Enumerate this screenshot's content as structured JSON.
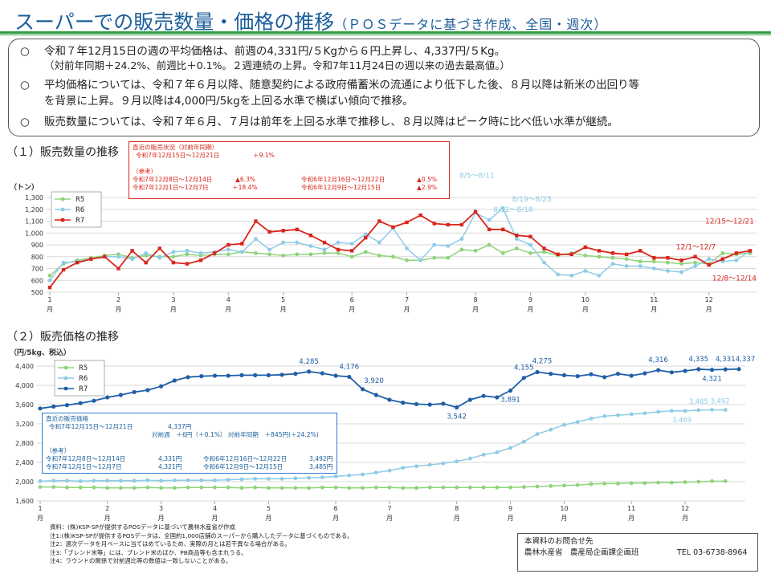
{
  "header": {
    "title": "スーパーでの販売数量・価格の推移",
    "subtitle": "（ＰＯＳデータに基づき作成、全国・週次）"
  },
  "summary": [
    {
      "mark": "○",
      "lines": [
        "令和７年12月15日の週の平均価格は、前週の4,331円/５Kgから６円上昇し、4,337円/５Kg。",
        "（対前年同期＋24.2%、前週比＋0.1%。２週連続の上昇。令和7年11月24日の週以来の過去最高値。）"
      ]
    },
    {
      "mark": "○",
      "lines": [
        "平均価格については、令和７年６月以降、随意契約による政府備蓄米の流通により低下した後、８月以降は新米の出回り等",
        "を背景に上昇。９月以降は4,000円/5kgを上回る水準で横ばい傾向で推移。"
      ]
    },
    {
      "mark": "○",
      "lines": [
        "販売数量については、令和７年６月、７月は前年を上回る水準で推移し、８月以降はピーク時に比べ低い水準が継続。"
      ]
    }
  ],
  "sections": {
    "volume_title": "（１）販売数量の推移",
    "volume_unit": "（トン）",
    "price_title": "（２）販売価格の推移",
    "price_unit": "（円/5kg、税込）"
  },
  "volume_box": {
    "heading": "直近の販売状況（対前年同期）",
    "r7_latest": "令和7年12月15日～12月21日",
    "r7_latest_change": "＋9.1%",
    "ref": "（参考）",
    "rows": [
      {
        "a": "令和7年12月8日～12月14日",
        "av": "▲6.3%",
        "b": "令和6年12月16日～12月22日",
        "bv": "▲0.5%"
      },
      {
        "a": "令和7年12月1日～12月7日",
        "av": "＋18.4%",
        "b": "令和6年12月9日～12月15日",
        "bv": "▲2.9%"
      }
    ]
  },
  "price_box": {
    "heading": "直近の販売価格",
    "r7_latest": "令和7年12月15日～12月21日",
    "r7_latest_value": "4,337円",
    "comparison": "対前週　＋6円（＋0.1%）  対前年同期　＋845円(＋24.2%)",
    "ref": "（参考）",
    "rows": [
      {
        "a": "令和7年12月8日～12月14日",
        "av": "4,331円",
        "b": "令和6年12月16日～12月22日",
        "bv": "3,492円"
      },
      {
        "a": "令和7年12月1日～12月7日",
        "av": "4,321円",
        "b": "令和6年12月9日～12月15日",
        "bv": "3,485円"
      }
    ]
  },
  "notes": [
    "資料：(株)KSP-SPが提供するPOSデータに基づいて農林水産省が作成",
    "注1:(株)KSP-SPが提供するPOSデータは、全国約1,000店舗のスーパーから購入したデータに基づくものである。",
    "注2：週次データを月ベースに当てはめているため、実際の月とは若干異なる場合がある。",
    "注3:「ブレンド米等」には、ブレンド米のほか、PB商品等も含まれうる。",
    "注4：ラウンドの関係で対前週比等の数値は一致しないことがある。"
  ],
  "contact": {
    "heading": "本資料のお問合せ先",
    "dept": "農林水産省　農産局企画課企画班",
    "tel": "TEL 03-6738-8964"
  },
  "colors": {
    "title": "#1a5e9a",
    "rule": "#2e9e3e",
    "r5": "#8fd37a",
    "r6": "#8ecbe6",
    "r7_volume": "#d9261c",
    "r7_price": "#1f5fa8",
    "grid": "#d9d9d9"
  },
  "chart_data": [
    {
      "type": "line",
      "title": "（１）販売数量の推移",
      "ylabel": "（トン）",
      "ylim": [
        500,
        1300
      ],
      "yticks": [
        "500",
        "600",
        "700",
        "800",
        "900",
        "1,000",
        "1,100",
        "1,200",
        "1,300"
      ],
      "month_labels": [
        "1",
        "2",
        "3",
        "4",
        "5",
        "6",
        "7",
        "8",
        "9",
        "10",
        "11",
        "12"
      ],
      "month_suffix": "月",
      "x_unit": "week",
      "month_starts": [
        0,
        5,
        9,
        13,
        17,
        22,
        26,
        31,
        35,
        39,
        44,
        48
      ],
      "legend": [
        "R5",
        "R6",
        "R7"
      ],
      "series": [
        {
          "name": "R5",
          "values": [
            640,
            740,
            770,
            790,
            810,
            820,
            790,
            810,
            800,
            800,
            820,
            810,
            820,
            820,
            840,
            830,
            820,
            810,
            820,
            820,
            830,
            830,
            800,
            840,
            810,
            800,
            770,
            770,
            790,
            790,
            860,
            850,
            900,
            830,
            870,
            830,
            840,
            810,
            830,
            810,
            800,
            790,
            780,
            760,
            760,
            750,
            740,
            750,
            740,
            830,
            820,
            830
          ]
        },
        {
          "name": "R6",
          "values": [
            600,
            750,
            760,
            780,
            800,
            800,
            780,
            830,
            790,
            840,
            850,
            830,
            840,
            860,
            840,
            950,
            860,
            920,
            920,
            890,
            860,
            920,
            910,
            990,
            920,
            1040,
            870,
            770,
            900,
            890,
            950,
            1170,
            1110,
            1210,
            950,
            900,
            750,
            650,
            640,
            680,
            640,
            740,
            720,
            720,
            700,
            680,
            670,
            720,
            780,
            760,
            770,
            850
          ]
        },
        {
          "name": "R7",
          "values": [
            540,
            690,
            750,
            780,
            800,
            700,
            850,
            750,
            870,
            750,
            740,
            770,
            830,
            900,
            910,
            1100,
            1010,
            1020,
            1030,
            980,
            920,
            860,
            850,
            960,
            1100,
            1050,
            1090,
            1150,
            1080,
            1070,
            1070,
            1180,
            1030,
            1030,
            980,
            970,
            870,
            820,
            820,
            880,
            850,
            830,
            820,
            850,
            790,
            790,
            770,
            800,
            730,
            780,
            830,
            850
          ]
        }
      ],
      "annotations": [
        "8/5～8/11",
        "8/12～8/18",
        "8/19～8/25",
        "12/1～12/7",
        "12/8～12/14",
        "12/15～12/21"
      ]
    },
    {
      "type": "line",
      "title": "（２）販売価格の推移",
      "ylabel": "（円/5kg、税込）",
      "ylim": [
        1600,
        4400
      ],
      "yticks": [
        "1,600",
        "2,000",
        "2,400",
        "2,800",
        "3,200",
        "3,600",
        "4,000",
        "4,400"
      ],
      "month_labels": [
        "1",
        "2",
        "3",
        "4",
        "5",
        "6",
        "7",
        "8",
        "9",
        "10",
        "11",
        "12"
      ],
      "month_suffix": "月",
      "x_unit": "week",
      "month_starts": [
        0,
        5,
        9,
        13,
        17,
        22,
        26,
        31,
        35,
        39,
        44,
        48
      ],
      "legend": [
        "R5",
        "R6",
        "R7"
      ],
      "series": [
        {
          "name": "R5",
          "values": [
            1890,
            1890,
            1880,
            1880,
            1880,
            1870,
            1870,
            1870,
            1880,
            1870,
            1870,
            1880,
            1880,
            1880,
            1880,
            1870,
            1880,
            1870,
            1870,
            1870,
            1870,
            1880,
            1880,
            1870,
            1870,
            1880,
            1880,
            1870,
            1870,
            1880,
            1880,
            1880,
            1880,
            1880,
            1880,
            1880,
            1890,
            1900,
            1910,
            1920,
            1930,
            1950,
            1960,
            1960,
            1970,
            1970,
            1980,
            1980,
            1990,
            2000,
            2010,
            2010
          ]
        },
        {
          "name": "R6",
          "values": [
            2010,
            2020,
            2020,
            2010,
            2020,
            2020,
            2020,
            2020,
            2030,
            2020,
            2030,
            2030,
            2030,
            2030,
            2040,
            2050,
            2060,
            2060,
            2060,
            2070,
            2080,
            2090,
            2110,
            2130,
            2150,
            2190,
            2230,
            2290,
            2320,
            2350,
            2380,
            2420,
            2480,
            2560,
            2610,
            2700,
            2830,
            2990,
            3080,
            3180,
            3240,
            3310,
            3360,
            3380,
            3400,
            3420,
            3450,
            3470,
            3469,
            3485,
            3492,
            3490
          ]
        },
        {
          "name": "R7",
          "values": [
            3520,
            3560,
            3590,
            3630,
            3680,
            3750,
            3800,
            3860,
            3900,
            3980,
            4100,
            4170,
            4190,
            4200,
            4200,
            4210,
            4210,
            4210,
            4220,
            4240,
            4285,
            4250,
            4200,
            4176,
            3920,
            3800,
            3700,
            3640,
            3610,
            3600,
            3620,
            3542,
            3700,
            3780,
            3750,
            3891,
            4155,
            4275,
            4240,
            4210,
            4190,
            4230,
            4170,
            4240,
            4200,
            4250,
            4316,
            4270,
            4300,
            4335,
            4321,
            4331,
            4337
          ]
        }
      ],
      "data_labels": {
        "R7": [
          "4,285",
          "4,176",
          "3,920",
          "3,542",
          "3,891",
          "4,155",
          "4,275",
          "4,316",
          "4,335",
          "4,321",
          "4,331",
          "4,337"
        ],
        "R6": [
          "3,469",
          "3,485",
          "3,492"
        ]
      }
    }
  ]
}
